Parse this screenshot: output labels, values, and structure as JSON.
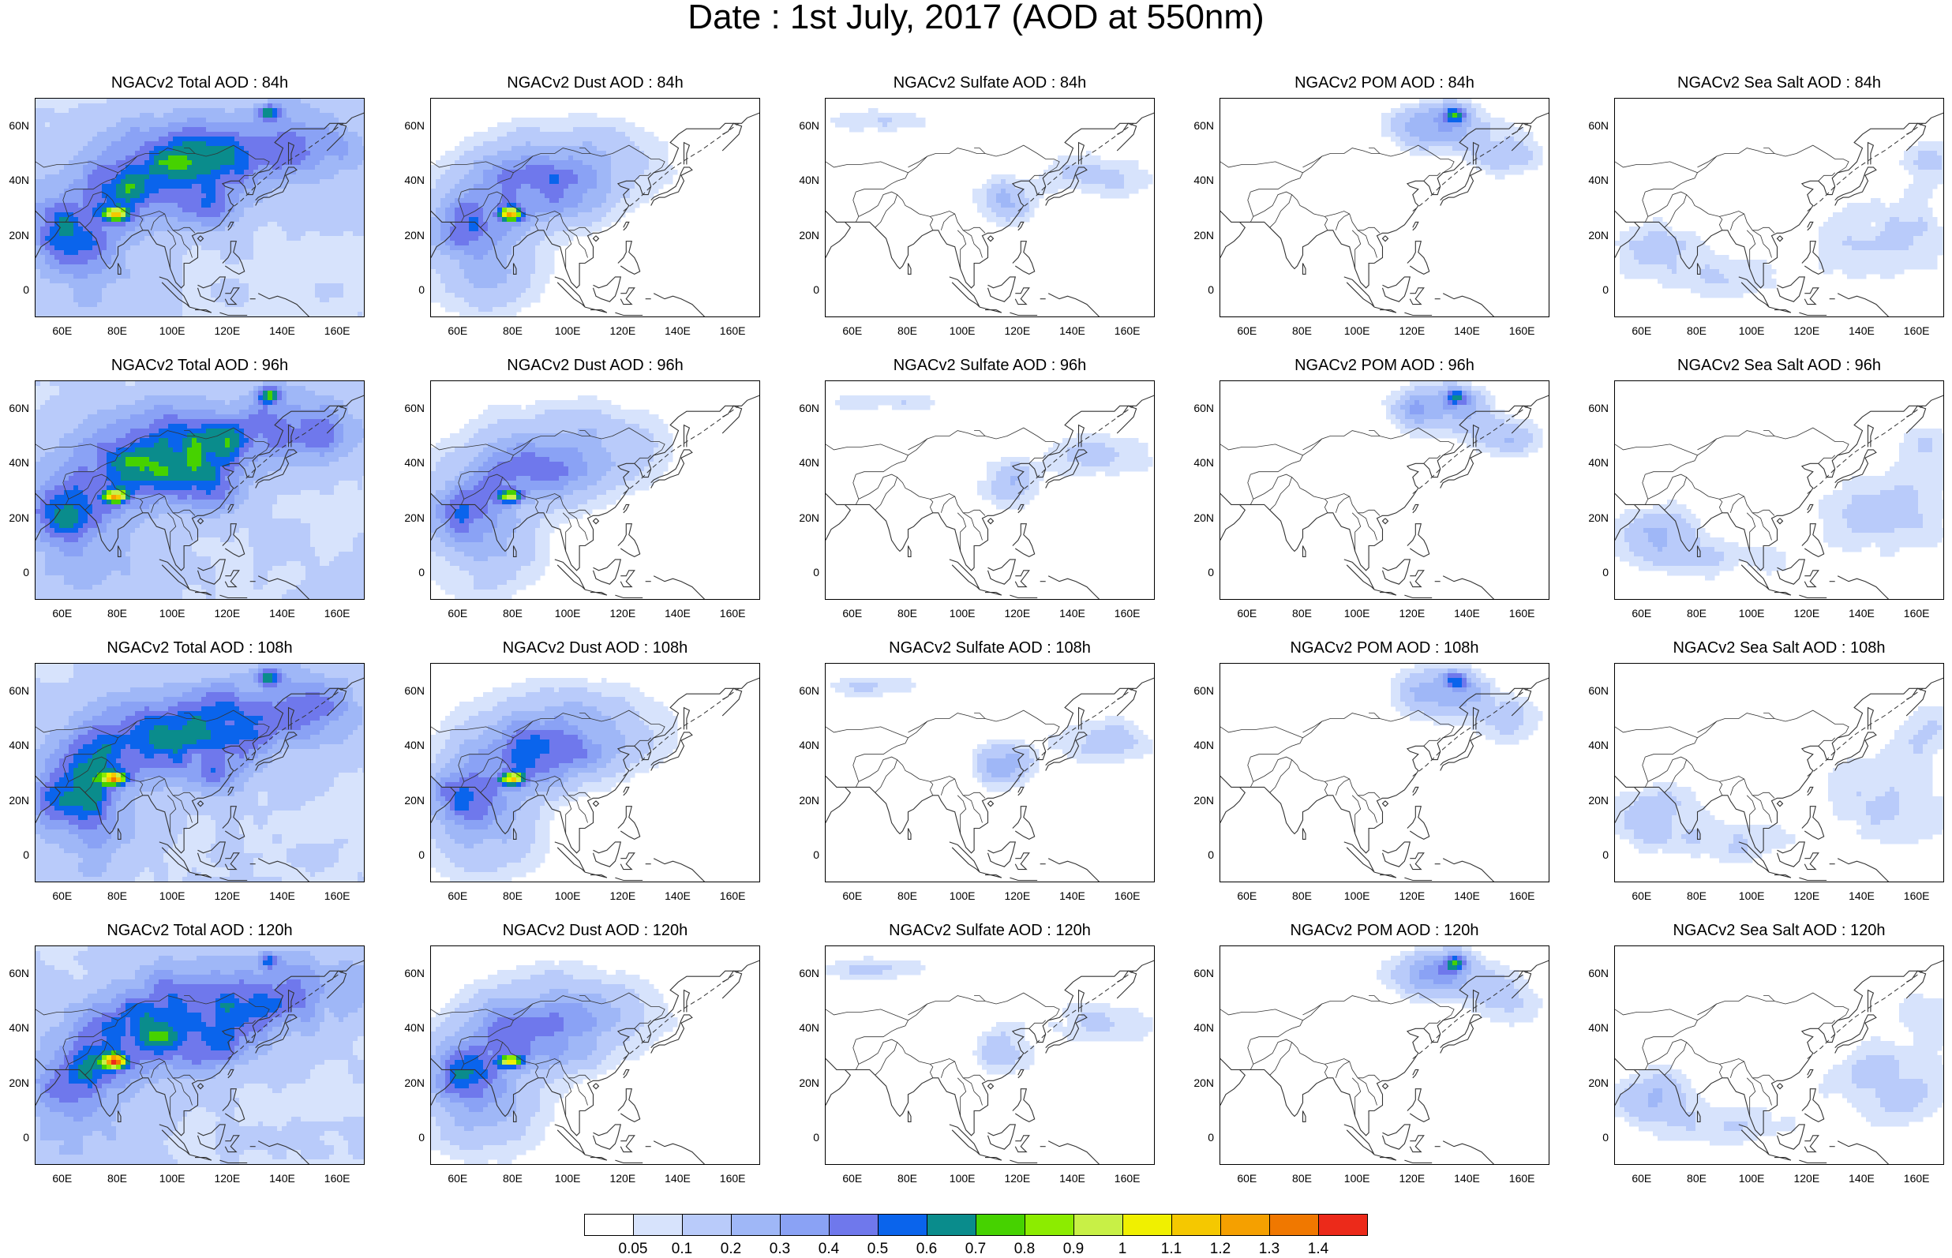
{
  "title": "Date : 1st July, 2017 (AOD at 550nm)",
  "colors": {
    "levels": [
      "#ffffff",
      "#d7e3fc",
      "#b9cbfa",
      "#9fb7f7",
      "#8aa2f5",
      "#6f78ec",
      "#0a64ec",
      "#0a8c8c",
      "#46d200",
      "#8cec00",
      "#c8f046",
      "#f0f000",
      "#f5c800",
      "#f5a000",
      "#f07800",
      "#ec2a1a"
    ]
  },
  "axes": {
    "y_ticks": [
      "60N",
      "40N",
      "20N",
      "0"
    ],
    "x_ticks": [
      "60E",
      "80E",
      "100E",
      "120E",
      "140E",
      "160E"
    ]
  },
  "colorbar": {
    "labels": [
      "0.05",
      "0.1",
      "0.2",
      "0.3",
      "0.4",
      "0.5",
      "0.6",
      "0.7",
      "0.8",
      "0.9",
      "1",
      "1.1",
      "1.2",
      "1.3",
      "1.4"
    ]
  },
  "panels": [
    {
      "title": "NGACv2 Total AOD : 84h",
      "type": "total"
    },
    {
      "title": "NGACv2 Dust AOD : 84h",
      "type": "dust"
    },
    {
      "title": "NGACv2 Sulfate AOD : 84h",
      "type": "sulfate"
    },
    {
      "title": "NGACv2 POM AOD : 84h",
      "type": "pom"
    },
    {
      "title": "NGACv2 Sea Salt AOD : 84h",
      "type": "seasalt"
    },
    {
      "title": "NGACv2 Total AOD : 96h",
      "type": "total"
    },
    {
      "title": "NGACv2 Dust AOD : 96h",
      "type": "dust"
    },
    {
      "title": "NGACv2 Sulfate AOD : 96h",
      "type": "sulfate"
    },
    {
      "title": "NGACv2 POM AOD : 96h",
      "type": "pom"
    },
    {
      "title": "NGACv2 Sea Salt AOD : 96h",
      "type": "seasalt"
    },
    {
      "title": "NGACv2 Total AOD : 108h",
      "type": "total"
    },
    {
      "title": "NGACv2 Dust AOD : 108h",
      "type": "dust"
    },
    {
      "title": "NGACv2 Sulfate AOD : 108h",
      "type": "sulfate"
    },
    {
      "title": "NGACv2 POM AOD : 108h",
      "type": "pom"
    },
    {
      "title": "NGACv2 Sea Salt AOD : 108h",
      "type": "seasalt"
    },
    {
      "title": "NGACv2 Total AOD : 120h",
      "type": "total"
    },
    {
      "title": "NGACv2 Dust AOD : 120h",
      "type": "dust"
    },
    {
      "title": "NGACv2 Sulfate AOD : 120h",
      "type": "sulfate"
    },
    {
      "title": "NGACv2 POM AOD : 120h",
      "type": "pom"
    },
    {
      "title": "NGACv2 Sea Salt  AOD : 120h",
      "type": "seasalt"
    }
  ]
}
